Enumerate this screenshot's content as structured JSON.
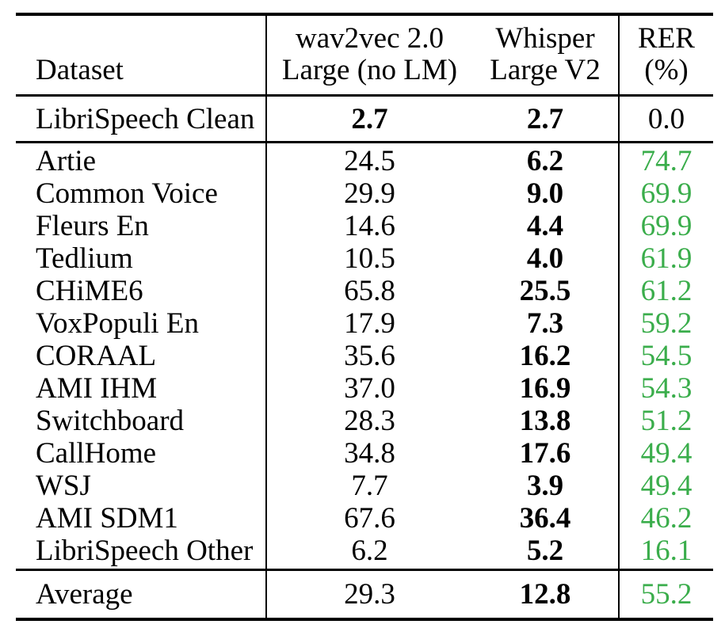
{
  "table": {
    "headers": {
      "dataset": "Dataset",
      "wav2vec_line1": "wav2vec 2.0",
      "wav2vec_line2": "Large (no LM)",
      "whisper_line1": "Whisper",
      "whisper_line2": "Large V2",
      "rer_line1": "RER",
      "rer_line2": "(%)"
    },
    "baseline_row": {
      "dataset": "LibriSpeech Clean",
      "wav2vec": "2.7",
      "whisper": "2.7",
      "rer": "0.0"
    },
    "rows": [
      {
        "dataset": "Artie",
        "wav2vec": "24.5",
        "whisper": "6.2",
        "rer": "74.7"
      },
      {
        "dataset": "Common Voice",
        "wav2vec": "29.9",
        "whisper": "9.0",
        "rer": "69.9"
      },
      {
        "dataset": "Fleurs En",
        "wav2vec": "14.6",
        "whisper": "4.4",
        "rer": "69.9"
      },
      {
        "dataset": "Tedlium",
        "wav2vec": "10.5",
        "whisper": "4.0",
        "rer": "61.9"
      },
      {
        "dataset": "CHiME6",
        "wav2vec": "65.8",
        "whisper": "25.5",
        "rer": "61.2"
      },
      {
        "dataset": "VoxPopuli En",
        "wav2vec": "17.9",
        "whisper": "7.3",
        "rer": "59.2"
      },
      {
        "dataset": "CORAAL",
        "wav2vec": "35.6",
        "whisper": "16.2",
        "rer": "54.5"
      },
      {
        "dataset": "AMI IHM",
        "wav2vec": "37.0",
        "whisper": "16.9",
        "rer": "54.3"
      },
      {
        "dataset": "Switchboard",
        "wav2vec": "28.3",
        "whisper": "13.8",
        "rer": "51.2"
      },
      {
        "dataset": "CallHome",
        "wav2vec": "34.8",
        "whisper": "17.6",
        "rer": "49.4"
      },
      {
        "dataset": "WSJ",
        "wav2vec": "7.7",
        "whisper": "3.9",
        "rer": "49.4"
      },
      {
        "dataset": "AMI SDM1",
        "wav2vec": "67.6",
        "whisper": "36.4",
        "rer": "46.2"
      },
      {
        "dataset": "LibriSpeech Other",
        "wav2vec": "6.2",
        "whisper": "5.2",
        "rer": "16.1"
      }
    ],
    "average_row": {
      "dataset": "Average",
      "wav2vec": "29.3",
      "whisper": "12.8",
      "rer": "55.2"
    }
  },
  "colors": {
    "rer_positive_green": "#3aad4b",
    "text_black": "#000000",
    "background_white": "#ffffff"
  }
}
